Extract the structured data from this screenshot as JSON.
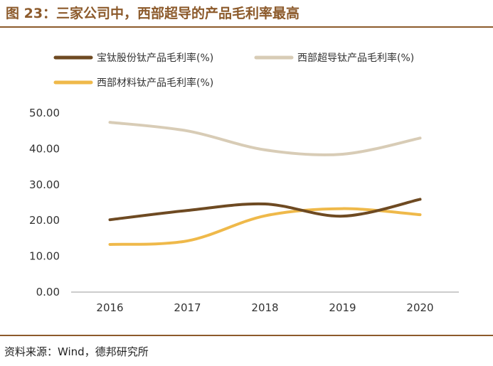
{
  "title": "图 23：三家公司中，西部超导的产品毛利率最高",
  "source": "资料来源：Wind，德邦研究所",
  "chart_data": {
    "type": "line",
    "x": [
      "2016",
      "2017",
      "2018",
      "2019",
      "2020"
    ],
    "ylim": [
      0,
      50
    ],
    "yticks": [
      "0.00",
      "10.00",
      "20.00",
      "30.00",
      "40.00",
      "50.00"
    ],
    "legend_position": "top",
    "grid": false,
    "series": [
      {
        "name": "宝钛股份钛产品毛利率(%)",
        "color": "#6e4a22",
        "values": [
          20.2,
          22.8,
          24.6,
          21.2,
          25.9
        ]
      },
      {
        "name": "西部超导钛产品毛利率(%)",
        "color": "#d8ccb6",
        "values": [
          47.4,
          45.0,
          39.7,
          38.5,
          43.0
        ]
      },
      {
        "name": "西部材料钛产品毛利率(%)",
        "color": "#efb94a",
        "values": [
          13.3,
          14.3,
          21.3,
          23.3,
          21.6
        ]
      }
    ]
  }
}
